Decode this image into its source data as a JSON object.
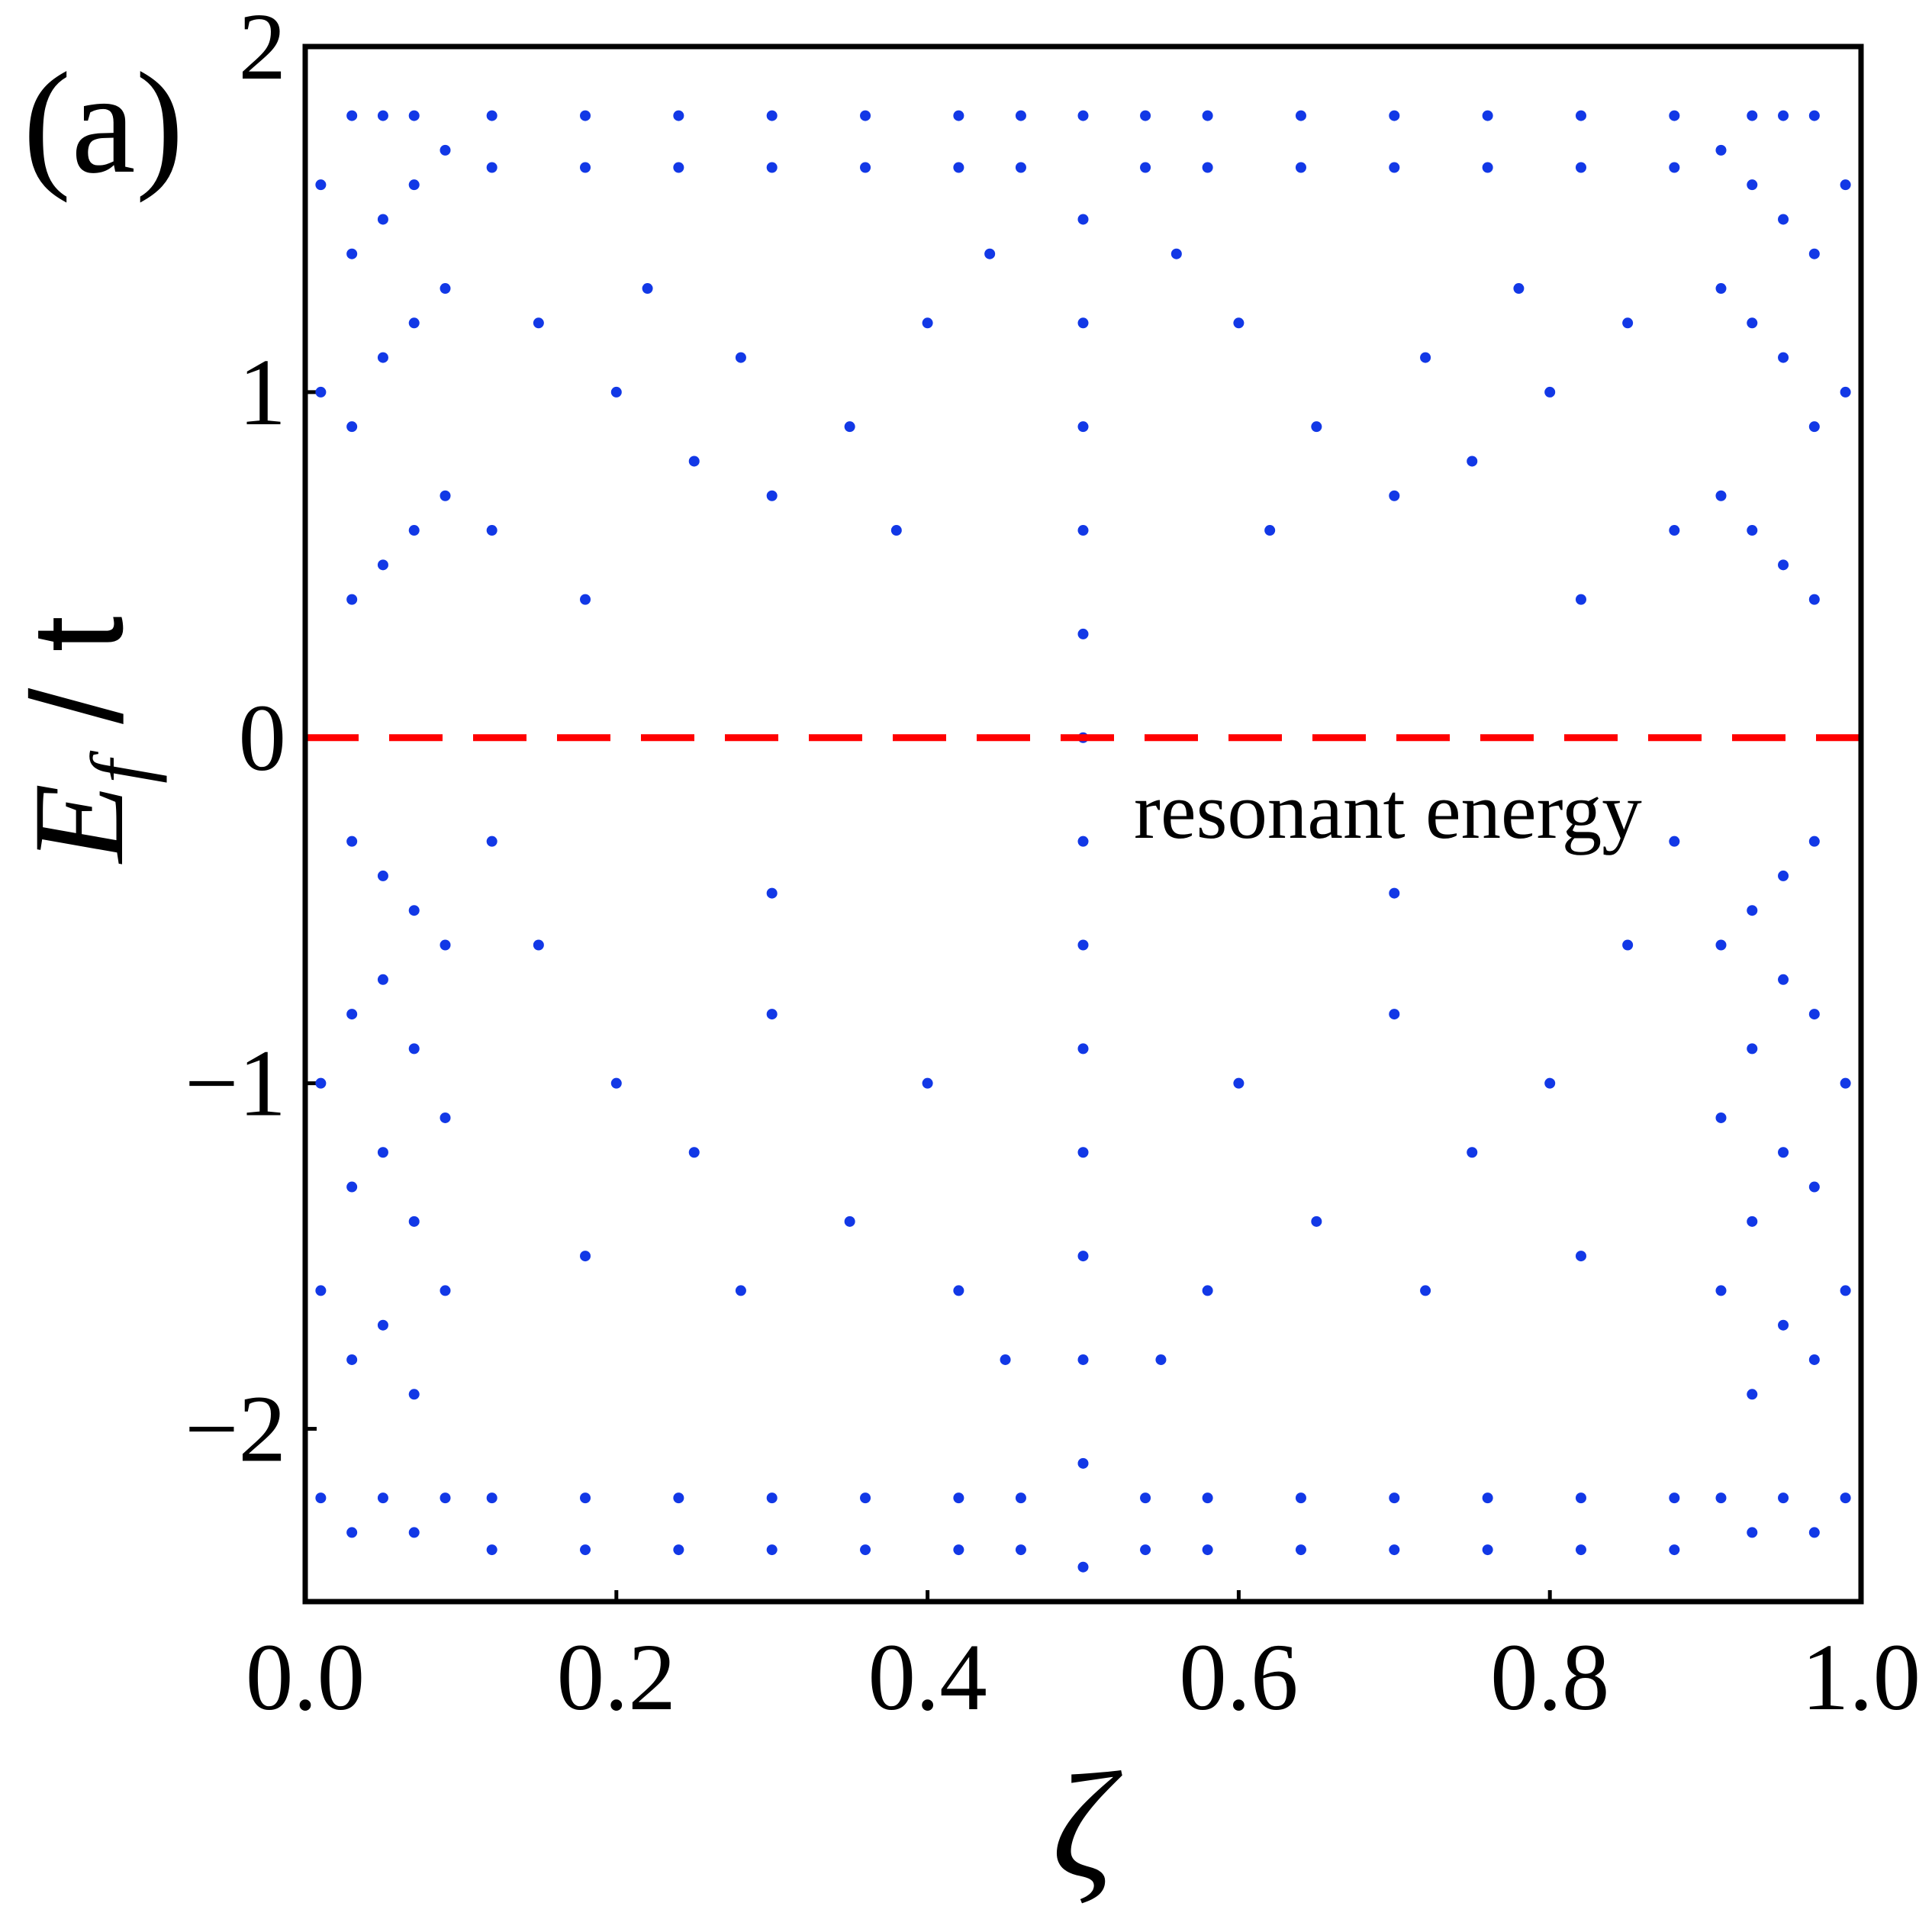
{
  "chart_data": {
    "type": "scatter",
    "panel_label": "(a)",
    "xlabel": "ζ",
    "ylabel": {
      "main": "E",
      "sub": "f",
      "rest": " / t"
    },
    "annotation": "resonant energy",
    "color": "#1238e6",
    "hline": {
      "y": 0,
      "color": "#ff0000",
      "dash": true
    },
    "xlim": [
      0,
      1
    ],
    "ylim": [
      -2.5,
      2
    ],
    "xticks": [
      {
        "value": 0,
        "label": "0.0"
      },
      0.2,
      0.4,
      0.6,
      0.8,
      {
        "value": 1,
        "label": "1.0"
      }
    ],
    "yticks": [
      {
        "value": -2,
        "label": "−2"
      },
      {
        "value": -1,
        "label": "−1"
      },
      0,
      1,
      2
    ],
    "x": [
      0.01,
      0.01,
      0.01,
      0.01,
      0.01,
      0.03,
      0.03,
      0.03,
      0.03,
      0.03,
      0.03,
      0.03,
      0.03,
      0.03,
      0.05,
      0.05,
      0.05,
      0.05,
      0.05,
      0.05,
      0.05,
      0.05,
      0.05,
      0.07,
      0.07,
      0.07,
      0.07,
      0.07,
      0.07,
      0.07,
      0.07,
      0.07,
      0.09,
      0.09,
      0.09,
      0.09,
      0.09,
      0.09,
      0.09,
      0.99,
      0.99,
      0.99,
      0.99,
      0.99,
      0.97,
      0.97,
      0.97,
      0.97,
      0.97,
      0.97,
      0.97,
      0.97,
      0.97,
      0.95,
      0.95,
      0.95,
      0.95,
      0.95,
      0.95,
      0.95,
      0.95,
      0.95,
      0.93,
      0.93,
      0.93,
      0.93,
      0.93,
      0.93,
      0.93,
      0.93,
      0.93,
      0.91,
      0.91,
      0.91,
      0.91,
      0.91,
      0.91,
      0.91,
      0.12,
      0.12,
      0.18,
      0.18,
      0.24,
      0.24,
      0.3,
      0.3,
      0.36,
      0.36,
      0.42,
      0.42,
      0.46,
      0.46,
      0.88,
      0.88,
      0.82,
      0.82,
      0.76,
      0.76,
      0.7,
      0.7,
      0.64,
      0.64,
      0.58,
      0.58,
      0.54,
      0.54,
      0.12,
      0.12,
      0.18,
      0.18,
      0.24,
      0.24,
      0.3,
      0.3,
      0.36,
      0.36,
      0.42,
      0.42,
      0.46,
      0.46,
      0.88,
      0.88,
      0.82,
      0.82,
      0.76,
      0.76,
      0.7,
      0.7,
      0.64,
      0.64,
      0.58,
      0.58,
      0.54,
      0.54,
      0.15,
      0.2,
      0.25,
      0.3,
      0.35,
      0.38,
      0.4,
      0.44,
      0.12,
      0.18,
      0.22,
      0.28,
      0.85,
      0.8,
      0.75,
      0.7,
      0.65,
      0.62,
      0.6,
      0.56,
      0.88,
      0.82,
      0.78,
      0.72,
      0.15,
      0.2,
      0.25,
      0.3,
      0.35,
      0.4,
      0.45,
      0.12,
      0.18,
      0.28,
      0.42,
      0.3,
      0.85,
      0.8,
      0.75,
      0.7,
      0.65,
      0.6,
      0.55,
      0.88,
      0.82,
      0.72,
      0.58,
      0.7,
      0.5,
      0.5,
      0.5,
      0.5,
      0.5,
      0.5,
      0.5,
      0.5,
      0.5,
      0.5,
      0.5,
      0.5,
      0.5,
      0.5,
      0.5
    ],
    "values": [
      -2.2,
      -1.6,
      -1.0,
      1.0,
      1.6,
      -2.3,
      -1.8,
      -1.3,
      -0.8,
      -0.3,
      0.4,
      0.9,
      1.4,
      1.8,
      -2.2,
      -1.7,
      -1.2,
      -0.7,
      -0.4,
      0.5,
      1.1,
      1.5,
      1.8,
      -2.3,
      -1.9,
      -1.4,
      -0.9,
      -0.5,
      0.6,
      1.2,
      1.6,
      1.8,
      -2.2,
      -1.6,
      -1.1,
      -0.6,
      0.7,
      1.3,
      1.7,
      -2.2,
      -1.6,
      -1.0,
      1.0,
      1.6,
      -2.3,
      -1.8,
      -1.3,
      -0.8,
      -0.3,
      0.4,
      0.9,
      1.4,
      1.8,
      -2.2,
      -1.7,
      -1.2,
      -0.7,
      -0.4,
      0.5,
      1.1,
      1.5,
      1.8,
      -2.3,
      -1.9,
      -1.4,
      -0.9,
      -0.5,
      0.6,
      1.2,
      1.6,
      1.8,
      -2.2,
      -1.6,
      -1.1,
      -0.6,
      0.7,
      1.3,
      1.7,
      1.8,
      1.65,
      1.8,
      1.65,
      1.8,
      1.65,
      1.8,
      1.65,
      1.8,
      1.65,
      1.8,
      1.65,
      1.8,
      1.65,
      1.8,
      1.65,
      1.8,
      1.65,
      1.8,
      1.65,
      1.8,
      1.65,
      1.8,
      1.65,
      1.8,
      1.65,
      1.8,
      1.65,
      -2.2,
      -2.35,
      -2.2,
      -2.35,
      -2.2,
      -2.35,
      -2.2,
      -2.35,
      -2.2,
      -2.35,
      -2.2,
      -2.35,
      -2.2,
      -2.35,
      -2.2,
      -2.35,
      -2.2,
      -2.35,
      -2.2,
      -2.35,
      -2.2,
      -2.35,
      -2.2,
      -2.35,
      -2.2,
      -2.35,
      -2.2,
      -2.35,
      1.2,
      1.0,
      0.8,
      0.7,
      0.9,
      0.6,
      1.2,
      1.4,
      0.6,
      0.4,
      1.3,
      1.1,
      1.2,
      1.0,
      0.8,
      0.7,
      0.9,
      0.6,
      1.2,
      1.4,
      0.6,
      0.4,
      1.3,
      1.1,
      -0.6,
      -1.0,
      -1.2,
      -0.8,
      -1.4,
      -1.0,
      -1.8,
      -0.3,
      -1.5,
      -1.6,
      -1.6,
      -0.45,
      -0.6,
      -1.0,
      -1.2,
      -0.8,
      -1.4,
      -1.0,
      -1.8,
      -0.3,
      -1.5,
      -1.6,
      -1.6,
      -0.45,
      -2.4,
      -2.1,
      -1.8,
      -1.5,
      -1.2,
      -0.9,
      -0.6,
      -0.3,
      0,
      0.3,
      0.6,
      0.9,
      1.2,
      1.5,
      1.8
    ]
  }
}
